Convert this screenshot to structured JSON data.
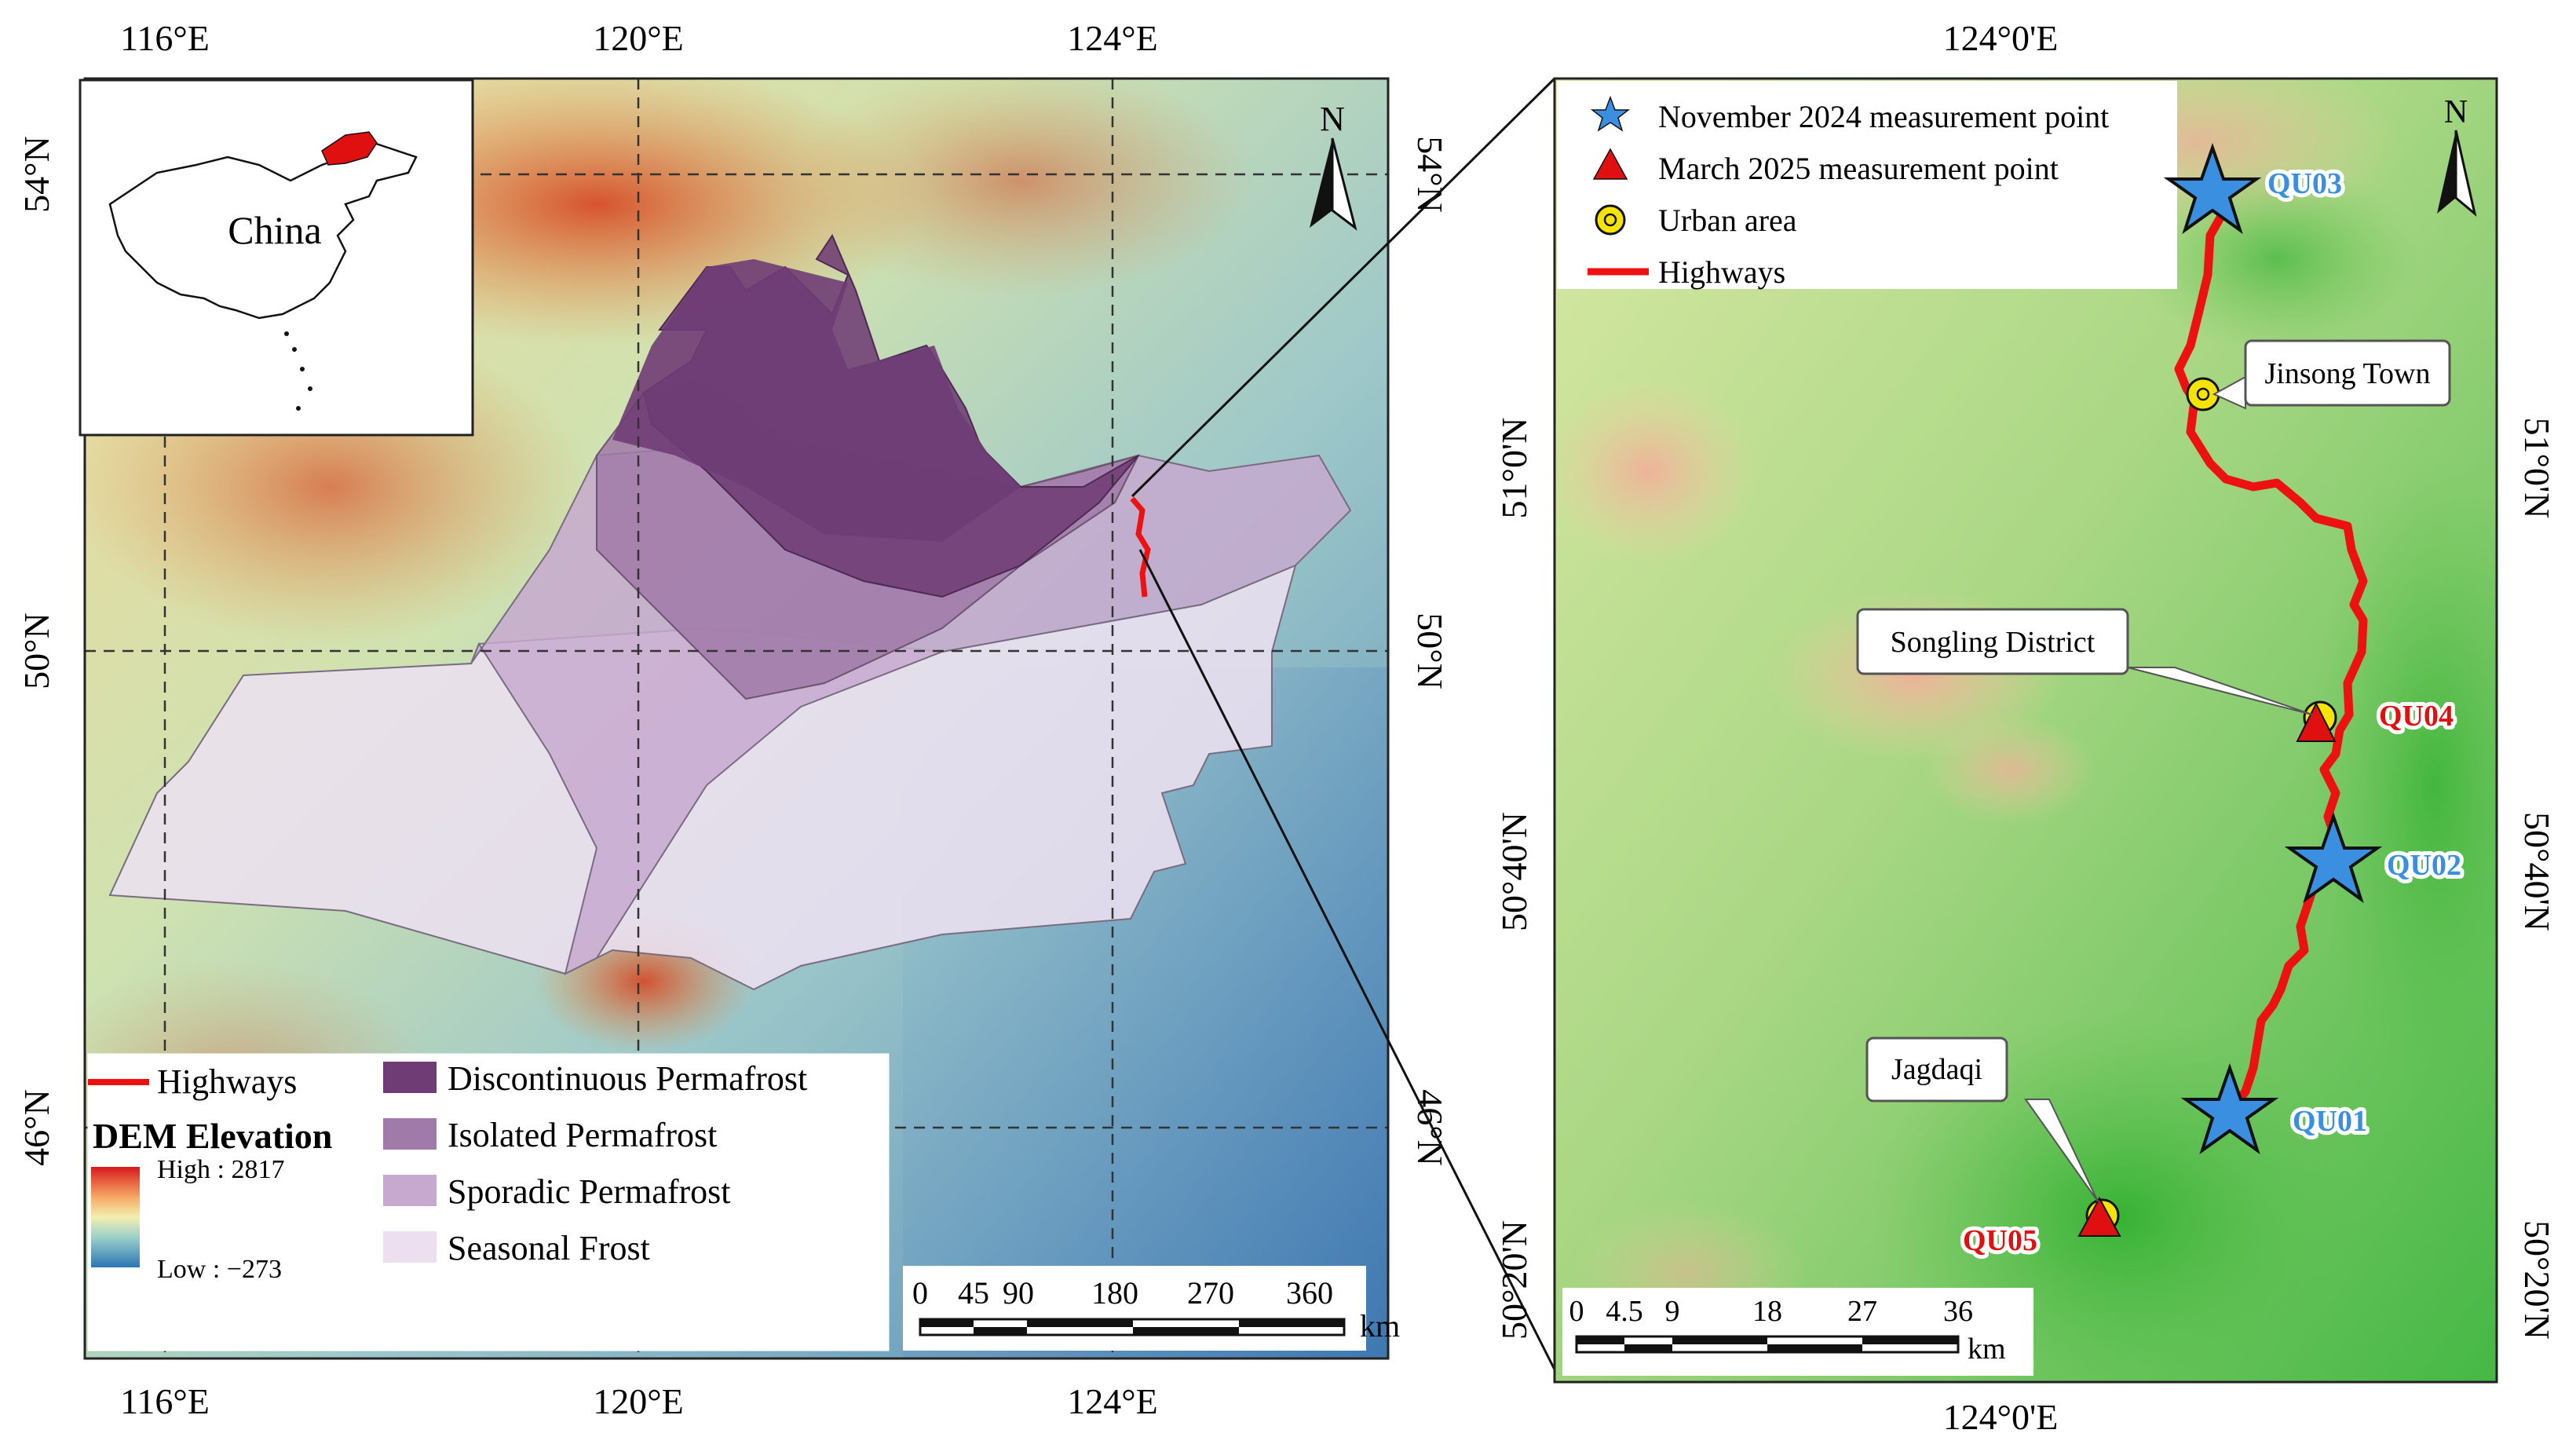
{
  "left_map": {
    "x_ticks": [
      "116°E",
      "120°E",
      "124°E"
    ],
    "y_ticks": [
      "54°N",
      "50°N",
      "46°N"
    ],
    "north_label": "N",
    "inset": {
      "label": "China"
    },
    "legend": {
      "highways": "Highways",
      "dem_title": "DEM Elevation",
      "dem_high": "High : 2817",
      "dem_low": "Low : −273",
      "classes": [
        {
          "label": "Discontinuous Permafrost",
          "color": "#6f3c75"
        },
        {
          "label": "Isolated Permafrost",
          "color": "#a07aa8"
        },
        {
          "label": "Sporadic Permafrost",
          "color": "#c7a9cf"
        },
        {
          "label": "Seasonal Frost",
          "color": "#ece0f0"
        }
      ]
    },
    "scale": {
      "ticks": [
        "0",
        "45",
        "90",
        "180",
        "270",
        "360"
      ],
      "unit": "km"
    }
  },
  "right_map": {
    "x_ticks": [
      "124°0'E"
    ],
    "y_ticks": [
      "51°0'N",
      "50°40'N",
      "50°20'N"
    ],
    "north_label": "N",
    "legend": {
      "nov": "November 2024 measurement point",
      "mar": "March 2025 measurement point",
      "urban": "Urban area",
      "highways": "Highways"
    },
    "points": [
      "QU03",
      "QU04",
      "QU02",
      "QU01",
      "QU05"
    ],
    "places": [
      "Jinsong Town",
      "Songling District",
      "Jagdaqi"
    ],
    "scale": {
      "ticks": [
        "0",
        "4.5",
        "9",
        "18",
        "27",
        "36"
      ],
      "unit": "km"
    }
  },
  "colors": {
    "highway": "#ee1111",
    "nov_point": "#3a8fe0",
    "mar_point": "#e01010",
    "urban": "#f5e400"
  }
}
